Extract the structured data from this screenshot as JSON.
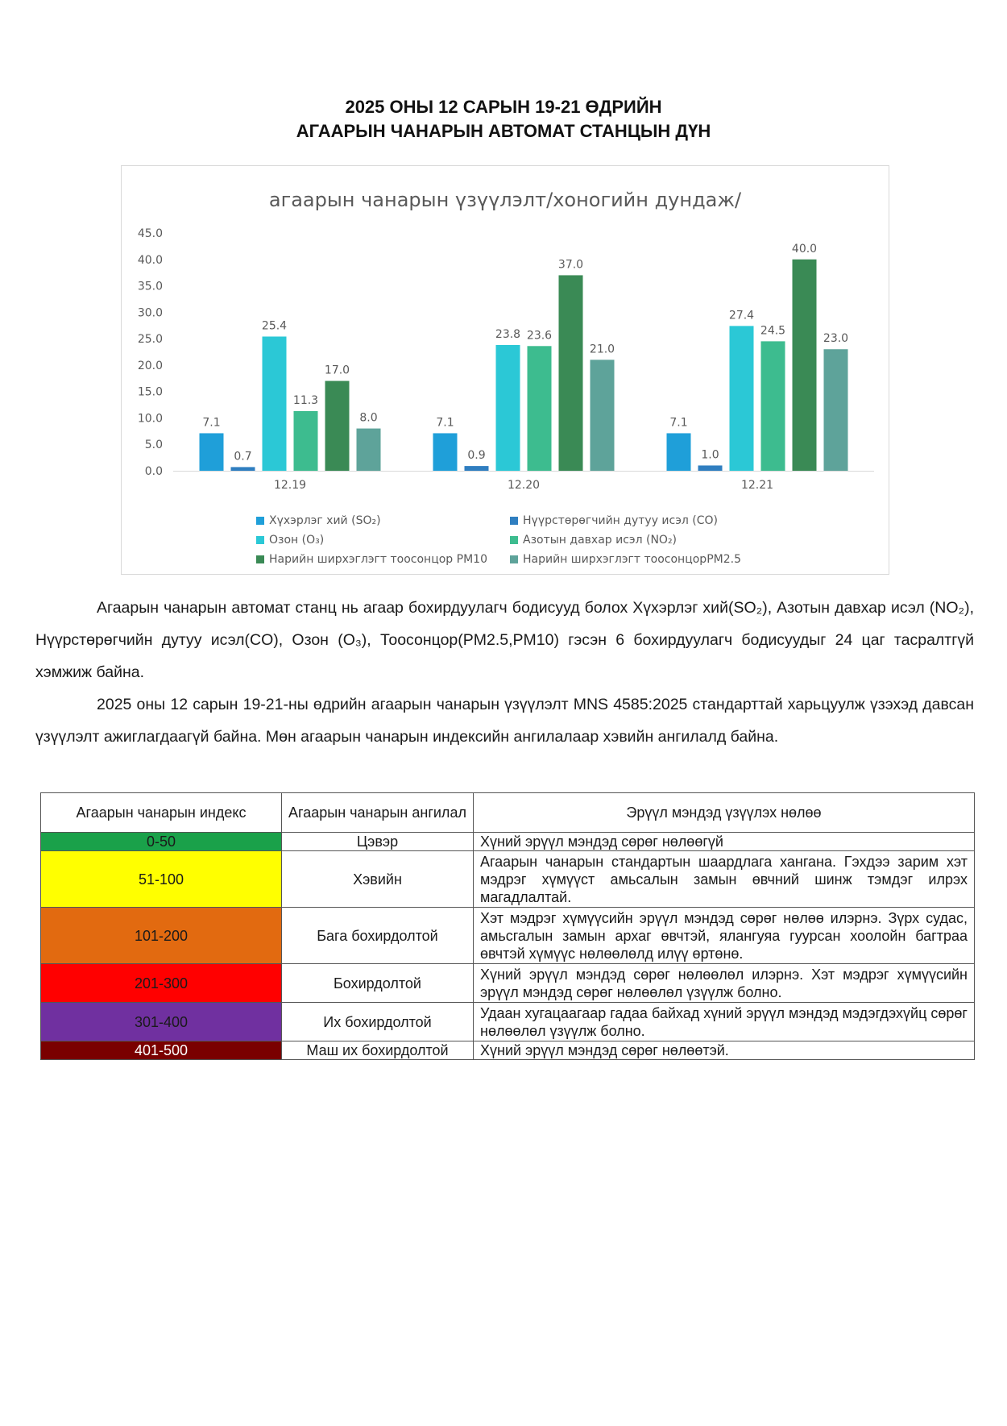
{
  "document": {
    "title_line1": "2025 ОНЫ 12 САРЫН 19-21  ӨДРИЙН",
    "title_line2": "АГААРЫН ЧАНАРЫН АВТОМАТ СТАНЦЫН ДҮН"
  },
  "chart_data": {
    "type": "bar",
    "title": "агаарын чанарын үзүүлэлт/хоногийн дундаж/",
    "categories": [
      "12.19",
      "12.20",
      "12.21"
    ],
    "ylim": [
      0,
      45
    ],
    "yticks": [
      "0.0",
      "5.0",
      "10.0",
      "15.0",
      "20.0",
      "25.0",
      "30.0",
      "35.0",
      "40.0",
      "45.0"
    ],
    "grid": false,
    "legend_position": "bottom",
    "series": [
      {
        "name": "Хүхэрлэг хий (SO₂)",
        "color": "#1f9fd9",
        "values": [
          7.1,
          7.1,
          7.1
        ],
        "labels": [
          "7.1",
          "7.1",
          "7.1"
        ]
      },
      {
        "name": "Нүүрстөрөгчийн дутуу исэл (CO)",
        "color": "#2f7ec0",
        "values": [
          0.7,
          0.9,
          1.0
        ],
        "labels": [
          "0.7",
          "0.9",
          "1.0"
        ]
      },
      {
        "name": "Озон (O₃)",
        "color": "#2bc8d6",
        "values": [
          25.4,
          23.8,
          27.4
        ],
        "labels": [
          "25.4",
          "23.8",
          "27.4"
        ]
      },
      {
        "name": "Азотын давхар исэл (NO₂)",
        "color": "#3dbc8f",
        "values": [
          11.3,
          23.6,
          24.5
        ],
        "labels": [
          "11.3",
          "23.6",
          "24.5"
        ]
      },
      {
        "name": "Нарийн ширхэглэгт тоосонцор PM10",
        "color": "#3a8a55",
        "values": [
          17.0,
          37.0,
          40.0
        ],
        "labels": [
          "17.0",
          "37.0",
          "40.0"
        ]
      },
      {
        "name": "Нарийн ширхэглэгт тоосонцорPM2.5",
        "color": "#5ea39a",
        "values": [
          8.0,
          21.0,
          23.0
        ],
        "labels": [
          "8.0",
          "21.0",
          "23.0"
        ]
      }
    ]
  },
  "paragraphs": {
    "p1": "Агаарын чанарын автомат станц нь агаар бохирдуулагч бодисууд болох Хүхэрлэг хий(SO₂), Азотын давхар исэл (NO₂), Нүүрстөрөгчийн дутуу исэл(CO), Озон (O₃), Тоосонцор(PM2.5,PM10) гэсэн 6 бохирдуулагч бодисуудыг 24 цаг тасралтгүй хэмжиж байна.",
    "p2": "2025 оны 12 сарын 19-21-ны өдрийн агаарын чанарын үзүүлэлт MNS 4585:2025 стандарттай харьцуулж үзэхэд давсан үзүүлэлт ажиглагдаагүй байна. Мөн агаарын чанарын индексийн ангилалаар хэвийн ангилалд байна."
  },
  "aqi_table": {
    "headers": [
      "Агаарын чанарын индекс",
      "Агаарын чанарын ангилал",
      "Эрүүл мэндэд үзүүлэх нөлөө"
    ],
    "rows": [
      {
        "index": "0-50",
        "color": "#1aa14a",
        "text_color": "#1a1a1a",
        "category": "Цэвэр",
        "effect": "Хүний эрүүл мэндэд сөрөг нөлөөгүй"
      },
      {
        "index": "51-100",
        "color": "#ffff00",
        "text_color": "#1a1a1a",
        "category": "Хэвийн",
        "effect": "Агаарын чанарын стандартын шаардлага хангана. Гэхдээ зарим хэт мэдрэг хүмүүст амьсалын замын өвчний шинж тэмдэг илрэх магадлалтай."
      },
      {
        "index": "101-200",
        "color": "#e26a10",
        "text_color": "#1a1a1a",
        "category": "Бага бохирдолтой",
        "effect": "Хэт мэдрэг хүмүүсийн эрүүл мэндэд сөрөг нөлөө илэрнэ. Зүрх судас, амьсгалын замын архаг өвчтэй, ялангуяа гуурсан хоолойн багтраа өвчтэй хүмүүс нөлөөлөлд илүү өртөнө."
      },
      {
        "index": "201-300",
        "color": "#ff0000",
        "text_color": "#1a1a1a",
        "category": "Бохирдолтой",
        "effect": "Хүний эрүүл мэндэд сөрөг нөлөөлөл илэрнэ. Хэт мэдрэг хүмүүсийн эрүүл мэндэд сөрөг нөлөөлөл үзүүлж болно."
      },
      {
        "index": "301-400",
        "color": "#7030a0",
        "text_color": "#1a1a1a",
        "category": "Их бохирдолтой",
        "effect": "Удаан хугацаагаар гадаа байхад хүний эрүүл мэндэд мэдэгдэхүйц сөрөг нөлөөлөл үзүүлж болно."
      },
      {
        "index": "401-500",
        "color": "#7a0000",
        "text_color": "#ffffff",
        "category": "Маш их бохирдолтой",
        "effect": "Хүний эрүүл мэндэд сөрөг нөлөөтэй."
      }
    ]
  }
}
